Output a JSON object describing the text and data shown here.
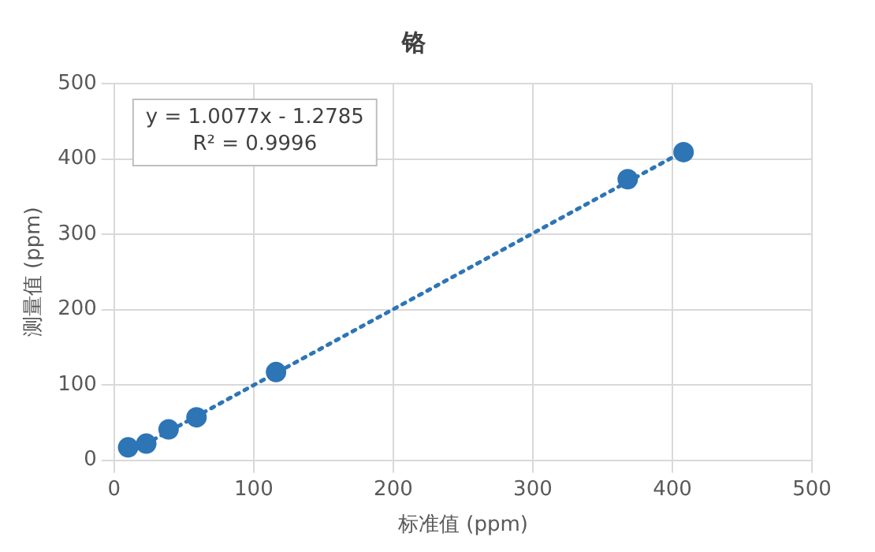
{
  "chart_data": {
    "type": "scatter",
    "title": "铬",
    "xlabel": "标准值 (ppm)",
    "ylabel": "测量值 (ppm)",
    "x": [
      10,
      23,
      39,
      59,
      116,
      368,
      408
    ],
    "series": [
      {
        "type": "scatter",
        "color": "#2e75b6",
        "values": [
          17,
          22,
          41,
          57,
          117,
          373,
          409
        ],
        "marker": "circle"
      },
      {
        "type": "line",
        "color": "#2e75b6",
        "x": [
          10,
          410
        ],
        "values": [
          9,
          412
        ],
        "line_style": "dotted",
        "marker": "none"
      }
    ],
    "xlim": [
      0,
      500
    ],
    "xticks": [
      0,
      100,
      200,
      300,
      400,
      500
    ],
    "ylim": [
      0,
      500
    ],
    "yticks": [
      0,
      100,
      200,
      300,
      400,
      500
    ],
    "grid": true,
    "legend": false,
    "annotations": [
      "y = 1.0077x - 1.2785\nR² = 0.9996"
    ]
  }
}
